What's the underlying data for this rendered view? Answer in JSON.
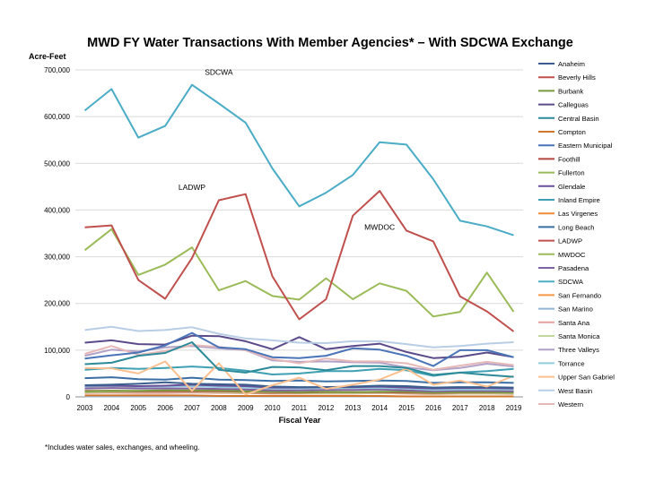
{
  "chart_data": {
    "type": "line",
    "title": "MWD FY Water Transactions With Member Agencies* – With SDCWA Exchange",
    "ylabel": "Acre-Feet",
    "xlabel": "Fiscal Year",
    "footnote": "*Includes water sales, exchanges, and wheeling.",
    "ylim": [
      0,
      700000
    ],
    "yticks": [
      0,
      100000,
      200000,
      300000,
      400000,
      500000,
      600000,
      700000
    ],
    "ytick_labels": [
      "0",
      "100,000",
      "200,000",
      "300,000",
      "400,000",
      "500,000",
      "600,000",
      "700,000"
    ],
    "x": [
      "2003",
      "2004",
      "2005",
      "2006",
      "2007",
      "2008",
      "2009",
      "2010",
      "2011",
      "2012",
      "2013",
      "2014",
      "2015",
      "2016",
      "2017",
      "2018",
      "2019"
    ],
    "legend_position": "right",
    "grid": "horizontal",
    "annotations": [
      {
        "text": "SDCWA",
        "series": "SDCWA"
      },
      {
        "text": "LADWP",
        "series": "LADWP"
      },
      {
        "text": "MWDOC",
        "series": "MWDOC"
      }
    ],
    "series": [
      {
        "name": "Anaheim",
        "color": "#3a5f8f",
        "values": [
          25000,
          26000,
          28000,
          31000,
          28000,
          27000,
          26000,
          22000,
          21000,
          21000,
          22000,
          24000,
          23000,
          20000,
          21000,
          21000,
          20000
        ]
      },
      {
        "name": "Beverly Hills",
        "color": "#c0504d",
        "values": [
          13000,
          13000,
          12000,
          12000,
          12000,
          12000,
          11000,
          10000,
          9000,
          10000,
          10000,
          10000,
          9000,
          8000,
          9000,
          9000,
          9000
        ]
      },
      {
        "name": "Burbank",
        "color": "#7a9a3a",
        "values": [
          12000,
          13000,
          13000,
          14000,
          14000,
          14000,
          12000,
          11000,
          10000,
          11000,
          10000,
          11000,
          11000,
          9000,
          10000,
          10000,
          9000
        ]
      },
      {
        "name": "Calleguas",
        "color": "#5b4a8a",
        "values": [
          116000,
          121000,
          113000,
          112000,
          131000,
          130000,
          119000,
          102000,
          128000,
          102000,
          109000,
          114000,
          96000,
          83000,
          86000,
          95000,
          85000
        ]
      },
      {
        "name": "Central Basin",
        "color": "#2c8a99",
        "values": [
          70000,
          73000,
          88000,
          94000,
          117000,
          58000,
          52000,
          64000,
          63000,
          57000,
          66000,
          66000,
          62000,
          47000,
          52000,
          47000,
          43000
        ]
      },
      {
        "name": "Compton",
        "color": "#d2762a",
        "values": [
          3000,
          3000,
          3000,
          3000,
          3000,
          2000,
          2000,
          2000,
          2000,
          2000,
          2000,
          2000,
          1000,
          1000,
          1000,
          1000,
          1000
        ]
      },
      {
        "name": "Eastern Municipal",
        "color": "#4a74b8",
        "values": [
          82000,
          89000,
          95000,
          110000,
          137000,
          106000,
          102000,
          85000,
          83000,
          88000,
          104000,
          101000,
          88000,
          66000,
          100000,
          100000,
          85000
        ]
      },
      {
        "name": "Foothill",
        "color": "#b5443f",
        "values": [
          11000,
          11000,
          11000,
          11000,
          11000,
          10000,
          9000,
          8000,
          8000,
          9000,
          9000,
          9000,
          8000,
          7000,
          8000,
          8000,
          8000
        ]
      },
      {
        "name": "Fullerton",
        "color": "#9bbb59",
        "values": [
          10000,
          11000,
          11000,
          11000,
          11000,
          10000,
          9000,
          9000,
          8000,
          8000,
          9000,
          9000,
          8000,
          7000,
          8000,
          8000,
          8000
        ]
      },
      {
        "name": "Glendale",
        "color": "#6a4f99",
        "values": [
          24000,
          24000,
          23000,
          24000,
          26000,
          24000,
          23000,
          20000,
          20000,
          21000,
          21000,
          22000,
          20000,
          18000,
          19000,
          19000,
          18000
        ]
      },
      {
        "name": "Inland Empire",
        "color": "#3f9fb3",
        "values": [
          58000,
          62000,
          60000,
          62000,
          65000,
          62000,
          56000,
          48000,
          50000,
          55000,
          55000,
          60000,
          57000,
          45000,
          52000,
          55000,
          60000
        ]
      },
      {
        "name": "Las Virgenes",
        "color": "#f08a3a",
        "values": [
          22000,
          23000,
          22000,
          23000,
          23000,
          22000,
          21000,
          19000,
          19000,
          20000,
          20000,
          21000,
          19000,
          16000,
          17000,
          18000,
          17000
        ]
      },
      {
        "name": "Long Beach",
        "color": "#3a6ea5",
        "values": [
          40000,
          42000,
          38000,
          37000,
          41000,
          37000,
          36000,
          34000,
          35000,
          33000,
          34000,
          35000,
          34000,
          30000,
          31000,
          31000,
          30000
        ]
      },
      {
        "name": "LADWP",
        "color": "#c0504d",
        "values": [
          363000,
          367000,
          250000,
          210000,
          297000,
          421000,
          434000,
          258000,
          166000,
          209000,
          388000,
          441000,
          356000,
          333000,
          215000,
          183000,
          140000
        ]
      },
      {
        "name": "MWDOC",
        "color": "#9bbb59",
        "values": [
          314000,
          359000,
          261000,
          283000,
          320000,
          228000,
          248000,
          216000,
          208000,
          254000,
          209000,
          243000,
          227000,
          172000,
          182000,
          266000,
          182000
        ]
      },
      {
        "name": "Pasadena",
        "color": "#8064a2",
        "values": [
          18000,
          19000,
          18000,
          18000,
          18000,
          17000,
          16000,
          14000,
          14000,
          15000,
          15000,
          16000,
          14000,
          12000,
          13000,
          13000,
          12000
        ]
      },
      {
        "name": "SDCWA",
        "color": "#4bacc6",
        "values": [
          613000,
          659000,
          555000,
          580000,
          668000,
          628000,
          587000,
          489000,
          408000,
          437000,
          475000,
          545000,
          540000,
          466000,
          377000,
          365000,
          346000
        ]
      },
      {
        "name": "San Fernando",
        "color": "#f79646",
        "values": [
          1000,
          1000,
          1000,
          1000,
          1000,
          1000,
          1000,
          1000,
          1000,
          1000,
          1000,
          1000,
          1000,
          1000,
          1000,
          1000,
          1000
        ]
      },
      {
        "name": "San Marino",
        "color": "#95b3d7",
        "values": [
          1000,
          1000,
          1000,
          1000,
          1000,
          1000,
          1000,
          1000,
          1000,
          1000,
          1000,
          1000,
          1000,
          1000,
          1000,
          1000,
          1000
        ]
      },
      {
        "name": "Santa Ana",
        "color": "#e6a19f",
        "values": [
          8000,
          9000,
          8000,
          8000,
          9000,
          8000,
          8000,
          7000,
          7000,
          7000,
          7000,
          8000,
          7000,
          6000,
          7000,
          7000,
          6000
        ]
      },
      {
        "name": "Santa Monica",
        "color": "#c3d69b",
        "values": [
          11000,
          12000,
          11000,
          11000,
          11000,
          10000,
          10000,
          9000,
          8000,
          8000,
          8000,
          9000,
          8000,
          7000,
          7000,
          7000,
          7000
        ]
      },
      {
        "name": "Three Valleys",
        "color": "#b2a1c7",
        "values": [
          88000,
          101000,
          97000,
          106000,
          109000,
          104000,
          100000,
          78000,
          75000,
          76000,
          74000,
          73000,
          63000,
          57000,
          62000,
          71000,
          65000
        ]
      },
      {
        "name": "Torrance",
        "color": "#93cddd",
        "values": [
          22000,
          23000,
          22000,
          22000,
          23000,
          21000,
          20000,
          18000,
          18000,
          19000,
          19000,
          19000,
          18000,
          15000,
          16000,
          16000,
          16000
        ]
      },
      {
        "name": "Upper San Gabriel",
        "color": "#fac090",
        "values": [
          62000,
          61000,
          50000,
          76000,
          13000,
          72000,
          5000,
          25000,
          41000,
          17000,
          26000,
          37000,
          60000,
          26000,
          35000,
          22000,
          45000
        ]
      },
      {
        "name": "West Basin",
        "color": "#b9cde5",
        "values": [
          143000,
          150000,
          141000,
          143000,
          149000,
          135000,
          125000,
          121000,
          116000,
          115000,
          119000,
          119000,
          113000,
          106000,
          109000,
          114000,
          117000
        ]
      },
      {
        "name": "Western",
        "color": "#e6b9b8",
        "values": [
          92000,
          109000,
          90000,
          98000,
          111000,
          107000,
          100000,
          81000,
          72000,
          82000,
          76000,
          76000,
          72000,
          58000,
          67000,
          75000,
          68000
        ]
      }
    ]
  }
}
